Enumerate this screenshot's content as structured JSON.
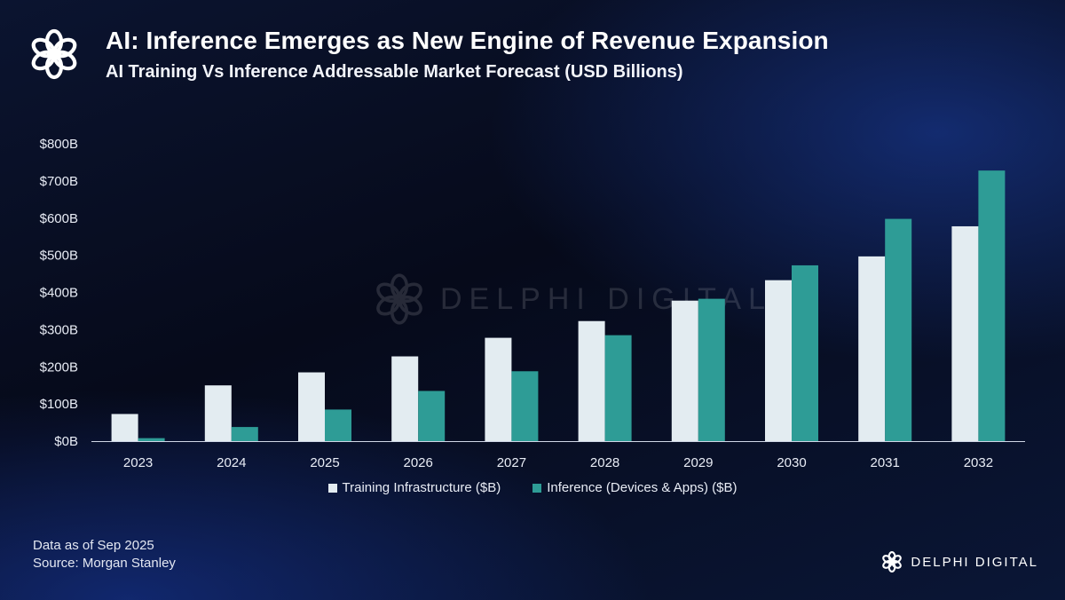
{
  "header": {
    "title": "AI: Inference Emerges as New Engine of Revenue Expansion",
    "subtitle": "AI Training Vs Inference Addressable Market  Forecast (USD Billions)"
  },
  "colors": {
    "training": "#e3ecf1",
    "inference": "#2e9c96",
    "axis": "#cfd6e6",
    "text": "#ffffff"
  },
  "chart_data": {
    "type": "bar",
    "title": "AI Training Vs Inference Addressable Market  Forecast (USD Billions)",
    "categories": [
      "2023",
      "2024",
      "2025",
      "2026",
      "2027",
      "2028",
      "2029",
      "2030",
      "2031",
      "2032"
    ],
    "series": [
      {
        "name": "Training Infrastructure ($B)",
        "values": [
          73,
          150,
          185,
          228,
          278,
          323,
          378,
          433,
          497,
          578
        ]
      },
      {
        "name": "Inference (Devices & Apps)  ($B)",
        "values": [
          8,
          38,
          85,
          135,
          188,
          285,
          383,
          473,
          598,
          728
        ]
      }
    ],
    "yticks": [
      "$0B",
      "$100B",
      "$200B",
      "$300B",
      "$400B",
      "$500B",
      "$600B",
      "$700B",
      "$800B"
    ],
    "ylim": [
      0,
      800
    ],
    "xlabel": "",
    "ylabel": "",
    "grid": false,
    "legend": "bottom-center"
  },
  "watermark": "DELPHI DIGITAL",
  "footnote": {
    "date": "Data as of Sep 2025",
    "source": "Source: Morgan Stanley"
  },
  "brand": {
    "name": "DELPHI DIGITAL",
    "icon": "delphi-logo-icon"
  }
}
